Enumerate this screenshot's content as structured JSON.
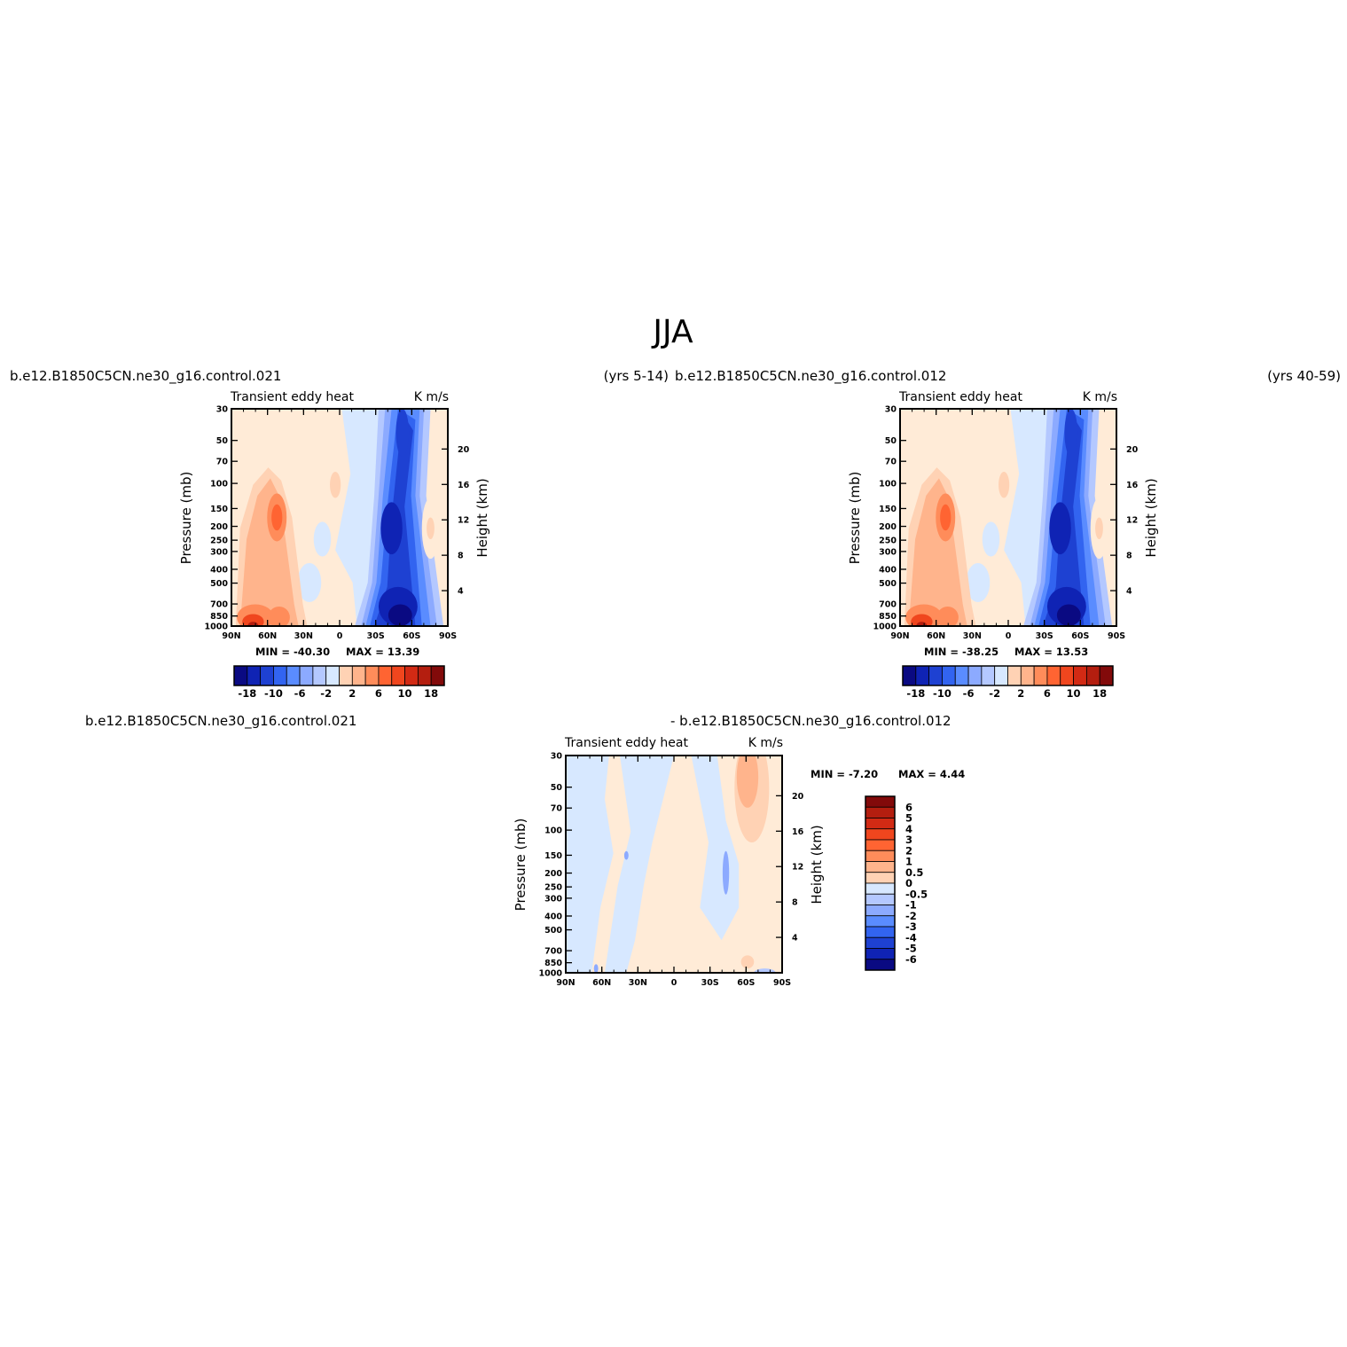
{
  "title": "JJA",
  "colors": {
    "neg": [
      "#0a0a82",
      "#0f23b4",
      "#1e41d2",
      "#3264f0",
      "#5a8cff",
      "#8caaff",
      "#b4c8ff",
      "#d7e8ff"
    ],
    "pos": [
      "#ffebd7",
      "#ffd2b4",
      "#ffb48c",
      "#ff8c5a",
      "#ff6432",
      "#f0461e",
      "#d22a14",
      "#b41e0f",
      "#820a0a"
    ]
  },
  "chart_data": [
    {
      "type": "heatmap",
      "name": "panel-top-left",
      "case_label": "b.e12.B1850C5CN.ne30_g16.control.021",
      "years_label": "(yrs 5-14)",
      "left_string": "Transient  eddy  heat",
      "right_string": "K  m/s",
      "ylabel": "Pressure  (mb)",
      "y2label": "Height  (km)",
      "min_label": "MIN  =   -40.30",
      "max_label": "MAX  =    13.39",
      "x_ticks": [
        "90N",
        "60N",
        "30N",
        "0",
        "30S",
        "60S",
        "90S"
      ],
      "y_ticks": [
        "30",
        "50",
        "70",
        "100",
        "150",
        "200",
        "250",
        "300",
        "400",
        "500",
        "700",
        "850",
        "1000"
      ],
      "y2_ticks": [
        "20",
        "16",
        "12",
        "8",
        "4"
      ],
      "colorbar_labels": [
        "-18",
        "-10",
        "-6",
        "-2",
        "2",
        "6",
        "10",
        "18"
      ],
      "colorbar_levels": [
        -18,
        -14,
        -10,
        -8,
        -6,
        -4,
        -2,
        0,
        2,
        4,
        6,
        8,
        10,
        14,
        18
      ]
    },
    {
      "type": "heatmap",
      "name": "panel-top-right",
      "case_label": "b.e12.B1850C5CN.ne30_g16.control.012",
      "years_label": "(yrs 40-59)",
      "left_string": "Transient  eddy  heat",
      "right_string": "K  m/s",
      "ylabel": "Pressure  (mb)",
      "y2label": "Height  (km)",
      "min_label": "MIN  =   -38.25",
      "max_label": "MAX  =    13.53",
      "x_ticks": [
        "90N",
        "60N",
        "30N",
        "0",
        "30S",
        "60S",
        "90S"
      ],
      "y_ticks": [
        "30",
        "50",
        "70",
        "100",
        "150",
        "200",
        "250",
        "300",
        "400",
        "500",
        "700",
        "850",
        "1000"
      ],
      "y2_ticks": [
        "20",
        "16",
        "12",
        "8",
        "4"
      ],
      "colorbar_labels": [
        "-18",
        "-10",
        "-6",
        "-2",
        "2",
        "6",
        "10",
        "18"
      ],
      "colorbar_levels": [
        -18,
        -14,
        -10,
        -8,
        -6,
        -4,
        -2,
        0,
        2,
        4,
        6,
        8,
        10,
        14,
        18
      ]
    },
    {
      "type": "heatmap",
      "name": "panel-difference",
      "case_label": "b.e12.B1850C5CN.ne30_g16.control.021",
      "minus_label": "-  b.e12.B1850C5CN.ne30_g16.control.012",
      "left_string": "Transient  eddy  heat",
      "right_string": "K  m/s",
      "ylabel": "Pressure  (mb)",
      "y2label": "Height  (km)",
      "min_label": "MIN  =   -7.20",
      "max_label": "MAX  =    4.44",
      "x_ticks": [
        "90N",
        "60N",
        "30N",
        "0",
        "30S",
        "60S",
        "90S"
      ],
      "y_ticks": [
        "30",
        "50",
        "70",
        "100",
        "150",
        "200",
        "250",
        "300",
        "400",
        "500",
        "700",
        "850",
        "1000"
      ],
      "y2_ticks": [
        "20",
        "16",
        "12",
        "8",
        "4"
      ],
      "colorbar_labels": [
        "6",
        "5",
        "4",
        "3",
        "2",
        "1",
        "0.5",
        "0",
        "-0.5",
        "-1",
        "-2",
        "-3",
        "-4",
        "-5",
        "-6"
      ],
      "colorbar_levels": [
        -6,
        -5,
        -4,
        -3,
        -2,
        -1,
        -0.5,
        0,
        0.5,
        1,
        2,
        3,
        4,
        5,
        6
      ]
    }
  ]
}
